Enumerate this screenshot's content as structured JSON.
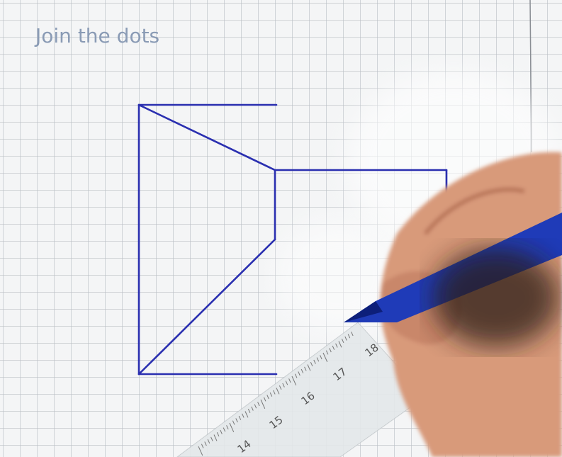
{
  "title": "Join the dots",
  "ruler": {
    "labels": [
      "14",
      "15",
      "16",
      "17",
      "18"
    ]
  }
}
